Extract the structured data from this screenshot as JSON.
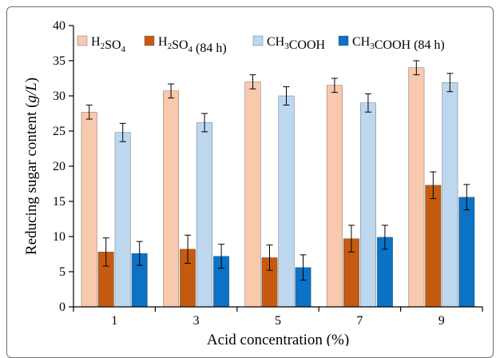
{
  "chart_data": {
    "type": "bar",
    "title": "",
    "xlabel": "Acid concentration (%)",
    "ylabel": {
      "pre": "Reducing sugar content (",
      "italic": "g/L",
      "post": ")"
    },
    "ylim": [
      0,
      40
    ],
    "yticks": [
      0,
      5,
      10,
      15,
      20,
      25,
      30,
      35,
      40
    ],
    "categories": [
      "1",
      "3",
      "5",
      "7",
      "9"
    ],
    "legend_position": "top",
    "grid": false,
    "series": [
      {
        "name": "H2SO4",
        "label_parts": [
          {
            "t": "H"
          },
          {
            "t": "2",
            "sub": true
          },
          {
            "t": "SO"
          },
          {
            "t": "4",
            "sub": true
          }
        ],
        "color": "#f9c9ad",
        "values": [
          27.7,
          30.7,
          32.0,
          31.5,
          34.0
        ],
        "errors": [
          1.0,
          1.0,
          1.0,
          1.0,
          1.0
        ]
      },
      {
        "name": "H2SO4 (84 h)",
        "label_parts": [
          {
            "t": "H"
          },
          {
            "t": "2",
            "sub": true
          },
          {
            "t": "SO"
          },
          {
            "t": "4",
            "sub": true
          },
          {
            "t": " (84 h)"
          }
        ],
        "color": "#c55a11",
        "values": [
          7.8,
          8.2,
          7.0,
          9.7,
          17.3
        ],
        "errors": [
          2.0,
          2.0,
          1.8,
          1.9,
          1.9
        ]
      },
      {
        "name": "CH3COOH",
        "label_parts": [
          {
            "t": "CH"
          },
          {
            "t": "3",
            "sub": true
          },
          {
            "t": "COOH"
          }
        ],
        "color": "#bdd7ee",
        "values": [
          24.8,
          26.2,
          30.0,
          29.0,
          31.9
        ],
        "errors": [
          1.3,
          1.3,
          1.3,
          1.3,
          1.3
        ]
      },
      {
        "name": "CH3COOH (84 h)",
        "label_parts": [
          {
            "t": "CH"
          },
          {
            "t": "3",
            "sub": true
          },
          {
            "t": "COOH (84 h)"
          }
        ],
        "color": "#0b72c5",
        "values": [
          7.6,
          7.2,
          5.6,
          9.9,
          15.6
        ],
        "errors": [
          1.7,
          1.7,
          1.8,
          1.7,
          1.8
        ]
      }
    ]
  }
}
